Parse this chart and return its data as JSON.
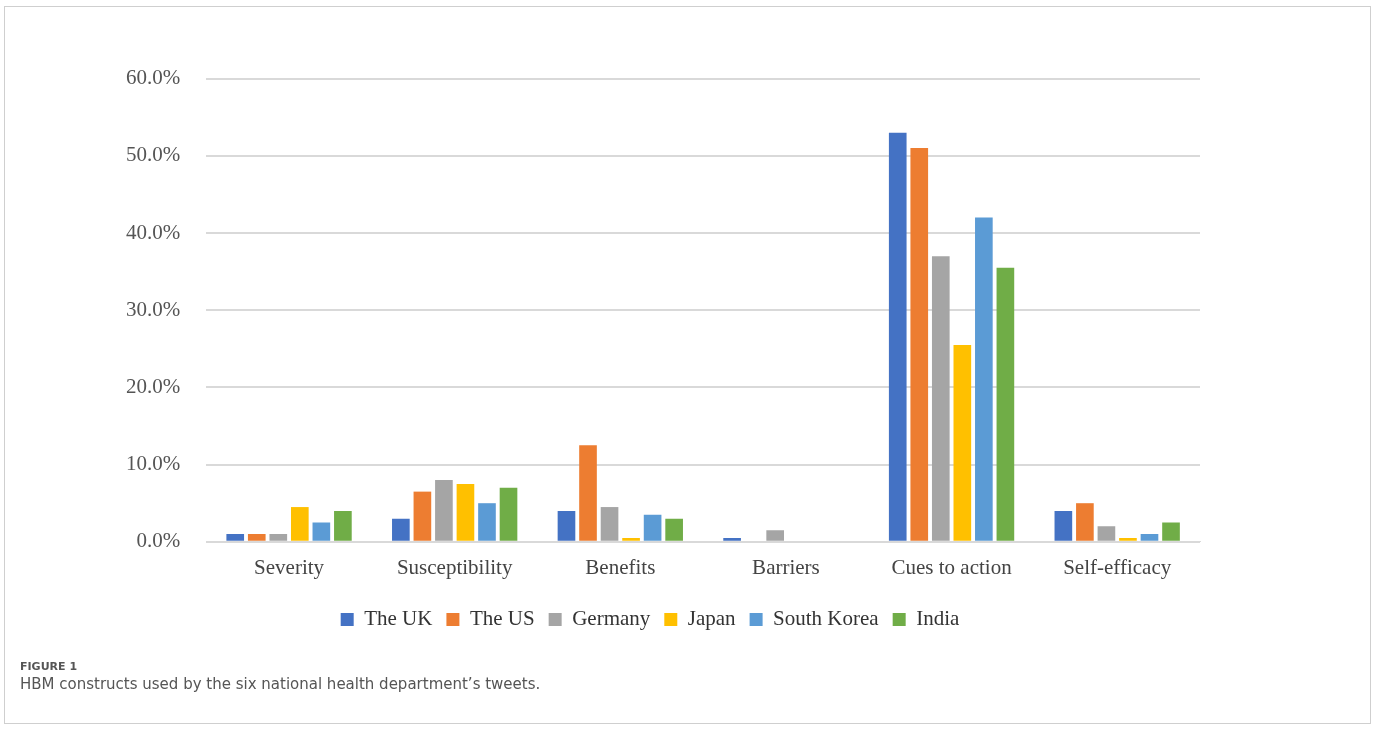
{
  "chart_data": {
    "type": "bar",
    "categories": [
      "Severity",
      "Susceptibility",
      "Benefits",
      "Barriers",
      "Cues to action",
      "Self-efficacy"
    ],
    "series": [
      {
        "name": "The UK",
        "color": "#4472c4",
        "values": [
          1.0,
          3.0,
          4.0,
          0.5,
          53.0,
          4.0
        ]
      },
      {
        "name": "The US",
        "color": "#ed7d31",
        "values": [
          1.0,
          6.5,
          12.5,
          0,
          51.0,
          5.0
        ]
      },
      {
        "name": "Germany",
        "color": "#a5a5a5",
        "values": [
          1.0,
          8.0,
          4.5,
          1.5,
          37.0,
          2.0
        ]
      },
      {
        "name": "Japan",
        "color": "#ffc000",
        "values": [
          4.5,
          7.5,
          0.5,
          0,
          25.5,
          0.5
        ]
      },
      {
        "name": "South Korea",
        "color": "#5b9bd5",
        "values": [
          2.5,
          5.0,
          3.5,
          0,
          42.0,
          1.0
        ]
      },
      {
        "name": "India",
        "color": "#70ad47",
        "values": [
          4.0,
          7.0,
          3.0,
          0,
          35.5,
          2.5
        ]
      }
    ],
    "ylim": [
      0,
      60
    ],
    "yticks": [
      {
        "value": 0,
        "label": "0.0%"
      },
      {
        "value": 10,
        "label": "10.0%"
      },
      {
        "value": 20,
        "label": "20.0%"
      },
      {
        "value": 30,
        "label": "30.0%"
      },
      {
        "value": 40,
        "label": "40.0%"
      },
      {
        "value": 50,
        "label": "50.0%"
      },
      {
        "value": 60,
        "label": "60.0%"
      }
    ],
    "grid": "y",
    "legend": "bottom",
    "annotations": [
      "FIGURE 1",
      "HBM constructs used by the six national health department’s tweets."
    ]
  }
}
